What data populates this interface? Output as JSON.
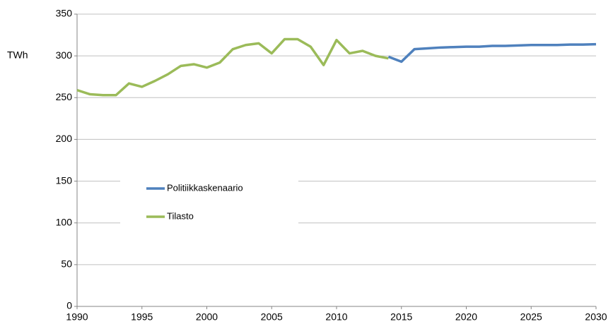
{
  "chart_data": {
    "type": "line",
    "ylabel": "TWh",
    "xlim": [
      1990,
      2030
    ],
    "xticks": [
      1990,
      1995,
      2000,
      2005,
      2010,
      2015,
      2020,
      2025,
      2030
    ],
    "ylim": [
      0,
      350
    ],
    "yticks": [
      0,
      50,
      100,
      150,
      200,
      250,
      300,
      350
    ],
    "grid": true,
    "series": [
      {
        "name": "Politiikkaskenaario",
        "color": "#4f81bd",
        "x": [
          2014,
          2015,
          2016,
          2017,
          2018,
          2019,
          2020,
          2021,
          2022,
          2023,
          2024,
          2025,
          2026,
          2027,
          2028,
          2029,
          2030
        ],
        "values": [
          299,
          293,
          308,
          309,
          310,
          310.5,
          311,
          311,
          312,
          312,
          312.5,
          313,
          313,
          313,
          313.5,
          313.5,
          314
        ]
      },
      {
        "name": "Tilasto",
        "color": "#9bbb59",
        "x": [
          1990,
          1991,
          1992,
          1993,
          1994,
          1995,
          1996,
          1997,
          1998,
          1999,
          2000,
          2001,
          2002,
          2003,
          2004,
          2005,
          2006,
          2007,
          2008,
          2009,
          2010,
          2011,
          2012,
          2013,
          2014
        ],
        "values": [
          259,
          254,
          253,
          253,
          267,
          263,
          270,
          278,
          288,
          290,
          286,
          292,
          308,
          313,
          315,
          303,
          320,
          320,
          311,
          289,
          319,
          303,
          306,
          300,
          297
        ]
      }
    ]
  }
}
